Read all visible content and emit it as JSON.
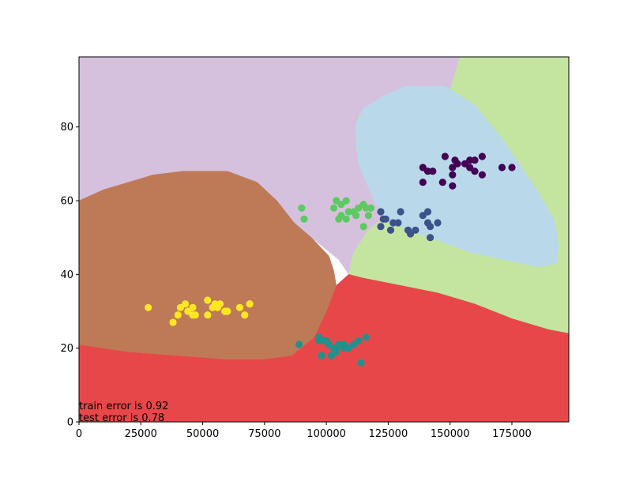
{
  "chart_data": {
    "type": "scatter",
    "title": "",
    "xlabel": "",
    "ylabel": "",
    "xlim": [
      0,
      198000
    ],
    "ylim": [
      0,
      99
    ],
    "x_ticks": [
      0,
      25000,
      50000,
      75000,
      100000,
      125000,
      150000,
      175000
    ],
    "y_ticks": [
      0,
      20,
      40,
      60,
      80
    ],
    "x_tick_labels": [
      "0",
      "25000",
      "50000",
      "75000",
      "100000",
      "125000",
      "150000",
      "175000"
    ],
    "y_tick_labels": [
      "0",
      "20",
      "40",
      "60",
      "80"
    ],
    "grid": false,
    "legend": "none",
    "annotations": [
      "train error is 0.92",
      "test error is 0.78"
    ],
    "regions": [
      {
        "color": "#d5c1de",
        "polygon": [
          [
            0,
            99
          ],
          [
            154000,
            99
          ],
          [
            150000,
            90
          ],
          [
            125000,
            89
          ],
          [
            113000,
            83
          ],
          [
            112000,
            74
          ],
          [
            118000,
            68
          ],
          [
            124000,
            63
          ],
          [
            128000,
            58
          ],
          [
            117000,
            52
          ],
          [
            111000,
            46
          ],
          [
            109000,
            40
          ],
          [
            105000,
            44
          ],
          [
            94000,
            50
          ],
          [
            87000,
            54
          ],
          [
            80000,
            60
          ],
          [
            72000,
            65
          ],
          [
            60000,
            68
          ],
          [
            42000,
            68
          ],
          [
            30000,
            67
          ],
          [
            20000,
            65
          ],
          [
            10000,
            63
          ],
          [
            0,
            60
          ]
        ]
      },
      {
        "color": "#c4e5a0",
        "polygon": [
          [
            154000,
            99
          ],
          [
            198000,
            99
          ],
          [
            198000,
            24
          ],
          [
            190000,
            25
          ],
          [
            175000,
            28
          ],
          [
            160000,
            32
          ],
          [
            145000,
            35
          ],
          [
            130000,
            37
          ],
          [
            115000,
            39
          ],
          [
            109000,
            40
          ],
          [
            111000,
            46
          ],
          [
            117000,
            52
          ],
          [
            128000,
            58
          ],
          [
            124000,
            63
          ],
          [
            118000,
            68
          ],
          [
            112000,
            74
          ],
          [
            113000,
            83
          ],
          [
            125000,
            89
          ],
          [
            150000,
            90
          ]
        ]
      },
      {
        "color": "#e8474a",
        "polygon": [
          [
            0,
            0
          ],
          [
            198000,
            0
          ],
          [
            198000,
            24
          ],
          [
            190000,
            25
          ],
          [
            175000,
            28
          ],
          [
            160000,
            32
          ],
          [
            145000,
            35
          ],
          [
            130000,
            37
          ],
          [
            115000,
            39
          ],
          [
            109000,
            40
          ],
          [
            104000,
            37
          ],
          [
            100000,
            30
          ],
          [
            95000,
            23
          ],
          [
            86000,
            18
          ],
          [
            74000,
            17
          ],
          [
            60000,
            17
          ],
          [
            40000,
            18
          ],
          [
            20000,
            19
          ],
          [
            0,
            21
          ]
        ]
      },
      {
        "color": "#be7a57",
        "polygon": [
          [
            0,
            60
          ],
          [
            10000,
            63
          ],
          [
            20000,
            65
          ],
          [
            30000,
            67
          ],
          [
            42000,
            68
          ],
          [
            60000,
            68
          ],
          [
            72000,
            65
          ],
          [
            80000,
            60
          ],
          [
            87000,
            54
          ],
          [
            94000,
            50
          ],
          [
            101000,
            45
          ],
          [
            103000,
            41
          ],
          [
            104000,
            37
          ],
          [
            100000,
            30
          ],
          [
            95000,
            23
          ],
          [
            86000,
            18
          ],
          [
            74000,
            17
          ],
          [
            60000,
            17
          ],
          [
            40000,
            18
          ],
          [
            20000,
            19
          ],
          [
            0,
            21
          ]
        ]
      },
      {
        "color": "#b9d9ea",
        "polygon": [
          [
            148000,
            91
          ],
          [
            160000,
            86
          ],
          [
            172000,
            76
          ],
          [
            185000,
            63
          ],
          [
            192000,
            55
          ],
          [
            194000,
            48
          ],
          [
            193000,
            43
          ],
          [
            186000,
            42
          ],
          [
            172000,
            44
          ],
          [
            158000,
            46
          ],
          [
            146000,
            49
          ],
          [
            133000,
            52
          ],
          [
            123000,
            55
          ],
          [
            118000,
            62
          ],
          [
            113000,
            70
          ],
          [
            112000,
            76
          ],
          [
            112000,
            81
          ],
          [
            115000,
            85
          ],
          [
            122000,
            88
          ],
          [
            132000,
            91
          ]
        ]
      }
    ],
    "series": [
      {
        "color": "#440154",
        "points": [
          [
            139000,
            69
          ],
          [
            141000,
            68
          ],
          [
            143000,
            68
          ],
          [
            148000,
            72
          ],
          [
            152000,
            71
          ],
          [
            151000,
            69
          ],
          [
            153000,
            70
          ],
          [
            156000,
            70
          ],
          [
            158000,
            71
          ],
          [
            160000,
            71
          ],
          [
            158000,
            69
          ],
          [
            160000,
            68
          ],
          [
            163000,
            72
          ],
          [
            163000,
            67
          ],
          [
            171000,
            69
          ],
          [
            175000,
            69
          ],
          [
            151000,
            67
          ],
          [
            147000,
            65
          ],
          [
            151000,
            64
          ],
          [
            139000,
            65
          ]
        ]
      },
      {
        "color": "#3b528b",
        "points": [
          [
            122000,
            57
          ],
          [
            123000,
            55
          ],
          [
            127000,
            54
          ],
          [
            130000,
            57
          ],
          [
            126000,
            52
          ],
          [
            122000,
            53
          ],
          [
            124000,
            55
          ],
          [
            129000,
            54
          ],
          [
            133000,
            52
          ],
          [
            134000,
            51
          ],
          [
            136000,
            52
          ],
          [
            139000,
            56
          ],
          [
            141000,
            54
          ],
          [
            141000,
            57
          ],
          [
            142000,
            53
          ],
          [
            145000,
            54
          ],
          [
            142000,
            50
          ]
        ]
      },
      {
        "color": "#21918c",
        "points": [
          [
            89000,
            21
          ],
          [
            97000,
            23
          ],
          [
            97000,
            22
          ],
          [
            99000,
            22
          ],
          [
            101000,
            21
          ],
          [
            100000,
            22
          ],
          [
            103000,
            20
          ],
          [
            104000,
            20
          ],
          [
            105000,
            21
          ],
          [
            107000,
            21
          ],
          [
            107000,
            20
          ],
          [
            109000,
            20
          ],
          [
            111000,
            21
          ],
          [
            113000,
            22
          ],
          [
            116000,
            23
          ],
          [
            114000,
            16
          ],
          [
            98000,
            18
          ],
          [
            102000,
            18
          ],
          [
            104000,
            19
          ]
        ]
      },
      {
        "color": "#5ec962",
        "points": [
          [
            90000,
            58
          ],
          [
            91000,
            55
          ],
          [
            103000,
            58
          ],
          [
            104000,
            60
          ],
          [
            106000,
            59
          ],
          [
            106000,
            56
          ],
          [
            108000,
            60
          ],
          [
            109000,
            57
          ],
          [
            111000,
            57
          ],
          [
            113000,
            58
          ],
          [
            115000,
            59
          ],
          [
            116000,
            58
          ],
          [
            117000,
            56
          ],
          [
            118000,
            58
          ],
          [
            115000,
            53
          ],
          [
            108000,
            55
          ],
          [
            105000,
            55
          ],
          [
            112000,
            56
          ]
        ]
      },
      {
        "color": "#fde725",
        "points": [
          [
            28000,
            31
          ],
          [
            38000,
            27
          ],
          [
            40000,
            29
          ],
          [
            41000,
            31
          ],
          [
            43000,
            32
          ],
          [
            44000,
            30
          ],
          [
            46000,
            31
          ],
          [
            46000,
            29
          ],
          [
            47000,
            29
          ],
          [
            52000,
            33
          ],
          [
            52000,
            29
          ],
          [
            54000,
            31
          ],
          [
            55000,
            32
          ],
          [
            56000,
            31
          ],
          [
            57000,
            32
          ],
          [
            59000,
            30
          ],
          [
            60000,
            30
          ],
          [
            65000,
            31
          ],
          [
            67000,
            29
          ],
          [
            69000,
            32
          ]
        ]
      }
    ]
  }
}
